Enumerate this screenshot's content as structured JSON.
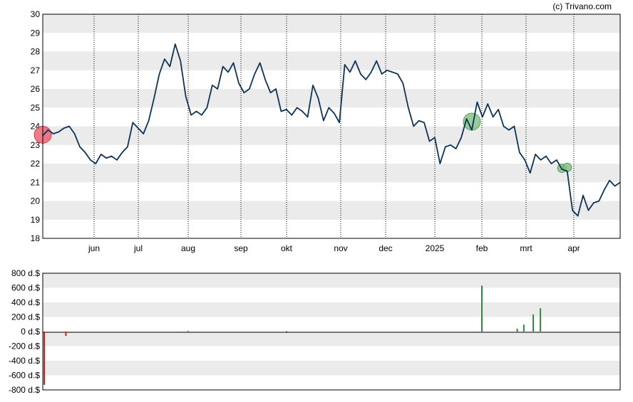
{
  "credit": "(c) Trivano.com",
  "colors": {
    "line": "#0d3357",
    "band": "#ebebeb",
    "buy": "#2e8b3a",
    "sell": "#cc1f1f",
    "buy_marker": "#7fbf7f",
    "sell_marker": "#e85a6a"
  },
  "chart_data": [
    {
      "type": "line",
      "title": "",
      "ylim": [
        18,
        30
      ],
      "y_ticks": [
        "18",
        "19",
        "20",
        "21",
        "22",
        "23",
        "24",
        "25",
        "26",
        "27",
        "28",
        "29",
        "30"
      ],
      "x_ticks": [
        "jun",
        "jul",
        "aug",
        "sep",
        "okt",
        "nov",
        "dec",
        "2025",
        "feb",
        "mrt",
        "apr"
      ],
      "grid": "alternating horizontal bands, dotted vertical lines at month starts",
      "series": [
        {
          "values": [
            23.5,
            23.8,
            23.6,
            23.7,
            23.9,
            24.0,
            23.6,
            22.9,
            22.6,
            22.2,
            22.0,
            22.5,
            22.3,
            22.4,
            22.2,
            22.6,
            22.9,
            24.2,
            23.9,
            23.6,
            24.3,
            25.5,
            26.8,
            27.6,
            27.2,
            28.4,
            27.5,
            25.6,
            24.6,
            24.8,
            24.6,
            25.0,
            26.2,
            26.0,
            27.2,
            26.9,
            27.4,
            26.3,
            25.8,
            26.0,
            26.8,
            27.4,
            26.5,
            25.8,
            26.0,
            24.8,
            24.9,
            24.6,
            25.0,
            24.8,
            24.5,
            26.2,
            25.5,
            24.3,
            25.0,
            24.7,
            24.2,
            27.3,
            26.9,
            27.5,
            26.8,
            26.5,
            26.9,
            27.5,
            26.8,
            27.0,
            26.9,
            26.8,
            26.3,
            25.0,
            24.0,
            24.3,
            24.2,
            23.2,
            23.4,
            22.0,
            22.9,
            23.0,
            22.8,
            23.4,
            24.4,
            23.8,
            25.3,
            24.5,
            25.2,
            24.5,
            24.9,
            24.0,
            23.8,
            24.0,
            22.6,
            22.2,
            21.5,
            22.5,
            22.2,
            22.4,
            22.0,
            22.2,
            21.7,
            21.6,
            19.5,
            19.2,
            20.3,
            19.5,
            19.9,
            20.0,
            20.6,
            21.1,
            20.8,
            21.0
          ],
          "color": "#0d3357"
        }
      ],
      "markers": [
        {
          "type": "sell",
          "x_index": 0,
          "value": 23.55
        },
        {
          "type": "buy",
          "x_index": 81,
          "value": 24.25
        },
        {
          "type": "buy",
          "x_index": 98,
          "value": 21.75
        },
        {
          "type": "buy",
          "x_index": 99,
          "value": 21.8
        }
      ]
    },
    {
      "type": "bar",
      "title": "",
      "ylim": [
        -800,
        800
      ],
      "y_ticks": [
        "800 d.$",
        "600 d.$",
        "400 d.$",
        "200 d.$",
        "0 d.$",
        "-200 d.$",
        "-400 d.$",
        "-600 d.$",
        "-800 d.$"
      ],
      "grid": "alternating horizontal bands",
      "bars": [
        {
          "month_pos": 0.0,
          "value": -730,
          "kind": "sell"
        },
        {
          "month_pos": 0.45,
          "value": -60,
          "kind": "sell"
        },
        {
          "month_pos": 3.0,
          "value": 10,
          "kind": "buy"
        },
        {
          "month_pos": 5.0,
          "value": 5,
          "kind": "buy"
        },
        {
          "month_pos": 9.0,
          "value": 630,
          "kind": "buy"
        },
        {
          "month_pos": 9.8,
          "value": 40,
          "kind": "buy"
        },
        {
          "month_pos": 9.95,
          "value": 95,
          "kind": "buy"
        },
        {
          "month_pos": 10.15,
          "value": 235,
          "kind": "buy"
        },
        {
          "month_pos": 10.3,
          "value": 320,
          "kind": "buy"
        }
      ]
    }
  ]
}
